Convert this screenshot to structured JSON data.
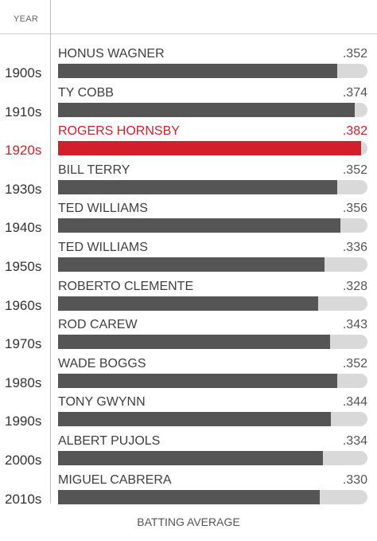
{
  "header": {
    "year_label": "YEAR"
  },
  "chart_data": {
    "type": "bar",
    "orientation": "horizontal",
    "xlabel": "BATTING AVERAGE",
    "ylabel": "YEAR",
    "xlim": [
      0,
      0.39
    ],
    "highlight_color": "#d11f2b",
    "bar_color": "#555555",
    "track_color": "#d9d9d9",
    "rows": [
      {
        "decade": "1900s",
        "player": "HONUS WAGNER",
        "label": ".352",
        "value": 0.352,
        "highlight": false
      },
      {
        "decade": "1910s",
        "player": "TY COBB",
        "label": ".374",
        "value": 0.374,
        "highlight": false
      },
      {
        "decade": "1920s",
        "player": "ROGERS HORNSBY",
        "label": ".382",
        "value": 0.382,
        "highlight": true
      },
      {
        "decade": "1930s",
        "player": "BILL TERRY",
        "label": ".352",
        "value": 0.352,
        "highlight": false
      },
      {
        "decade": "1940s",
        "player": "TED WILLIAMS",
        "label": ".356",
        "value": 0.356,
        "highlight": false
      },
      {
        "decade": "1950s",
        "player": "TED WILLIAMS",
        "label": ".336",
        "value": 0.336,
        "highlight": false
      },
      {
        "decade": "1960s",
        "player": "ROBERTO CLEMENTE",
        "label": ".328",
        "value": 0.328,
        "highlight": false
      },
      {
        "decade": "1970s",
        "player": "ROD CAREW",
        "label": ".343",
        "value": 0.343,
        "highlight": false
      },
      {
        "decade": "1980s",
        "player": "WADE BOGGS",
        "label": ".352",
        "value": 0.352,
        "highlight": false
      },
      {
        "decade": "1990s",
        "player": "TONY GWYNN",
        "label": ".344",
        "value": 0.344,
        "highlight": false
      },
      {
        "decade": "2000s",
        "player": "ALBERT PUJOLS",
        "label": ".334",
        "value": 0.334,
        "highlight": false
      },
      {
        "decade": "2010s",
        "player": "MIGUEL CABRERA",
        "label": ".330",
        "value": 0.33,
        "highlight": false
      }
    ]
  }
}
